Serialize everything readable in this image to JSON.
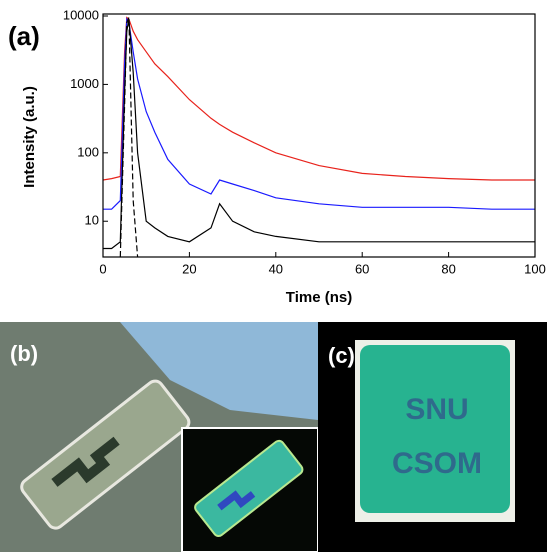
{
  "chart_data": {
    "type": "line",
    "panel_label": "(a)",
    "xlabel": "Time (ns)",
    "ylabel": "Intensity (a.u.)",
    "x": [
      0,
      2,
      4,
      5,
      5.5,
      6,
      7,
      8,
      10,
      12,
      15,
      20,
      25,
      27,
      30,
      35,
      40,
      50,
      60,
      70,
      80,
      90,
      100
    ],
    "xlim": [
      0,
      100
    ],
    "xticks": [
      0,
      20,
      40,
      60,
      80,
      100
    ],
    "ylim": [
      3,
      10000
    ],
    "yticks": [
      10,
      100,
      1000,
      10000
    ],
    "log_y": true,
    "series": [
      {
        "color": "#e8231c",
        "values": [
          40,
          42,
          45,
          3000,
          9500,
          9000,
          6000,
          4500,
          3000,
          2000,
          1300,
          600,
          320,
          260,
          200,
          140,
          100,
          65,
          50,
          45,
          42,
          40,
          40
        ]
      },
      {
        "color": "#1a1aff",
        "values": [
          15,
          15,
          20,
          2000,
          9000,
          8000,
          3000,
          1200,
          400,
          200,
          80,
          35,
          25,
          40,
          35,
          28,
          22,
          18,
          16,
          16,
          16,
          15,
          15
        ]
      },
      {
        "color": "#000000",
        "values": [
          4,
          4,
          5,
          800,
          6000,
          9000,
          1500,
          100,
          10,
          8,
          6,
          5,
          8,
          18,
          10,
          7,
          6,
          5,
          5,
          5,
          5,
          5,
          5
        ]
      },
      {
        "color": "#000000",
        "dash": true,
        "values": [
          null,
          null,
          3,
          500,
          8000,
          9500,
          20,
          3,
          null,
          null,
          null,
          null,
          null,
          null,
          null,
          null,
          null,
          null,
          null,
          null,
          null,
          null,
          null
        ]
      }
    ]
  },
  "photos": {
    "b": {
      "label": "(b)"
    },
    "c": {
      "label": "(c)",
      "text": [
        "SNU",
        "CSOM"
      ]
    }
  }
}
